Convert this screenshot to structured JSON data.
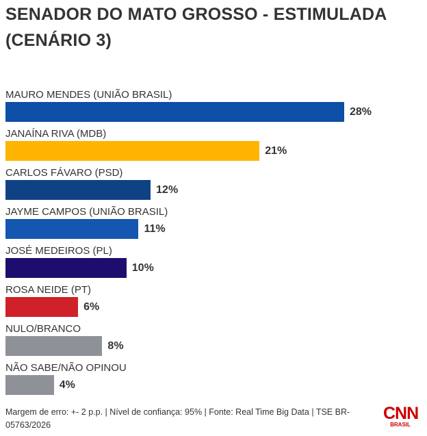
{
  "title": "SENADOR DO MATO GROSSO - ESTIMULADA (CENÁRIO 3)",
  "chart_data": {
    "type": "bar",
    "orientation": "horizontal",
    "title": "SENADOR DO MATO GROSSO - ESTIMULADA (CENÁRIO 3)",
    "categories": [
      "MAURO MENDES (UNIÃO BRASIL)",
      "JANAÍNA RIVA (MDB)",
      "CARLOS FÁVARO (PSD)",
      "JAYME CAMPOS (UNIÃO BRASIL)",
      "JOSÉ MEDEIROS (PL)",
      "ROSA NEIDE (PT)",
      "NULO/BRANCO",
      "NÃO SABE/NÃO OPINOU"
    ],
    "values": [
      28,
      21,
      12,
      11,
      10,
      6,
      8,
      4
    ],
    "labels": [
      "28%",
      "21%",
      "12%",
      "11%",
      "10%",
      "6%",
      "8%",
      "4%"
    ],
    "colors": [
      "#0d4ea6",
      "#ffb400",
      "#0f4285",
      "#1456b0",
      "#1e0d6e",
      "#d0202a",
      "#8f9199",
      "#8f9199"
    ],
    "xlim": [
      0,
      28
    ],
    "unit": "%"
  },
  "footer": "Margem de erro: +- 2 p.p. | Nível de confiança: 95% | Fonte: Real Time Big Data | TSE BR-05763/2026",
  "logo": {
    "name": "CNN",
    "sub": "BRASIL"
  }
}
